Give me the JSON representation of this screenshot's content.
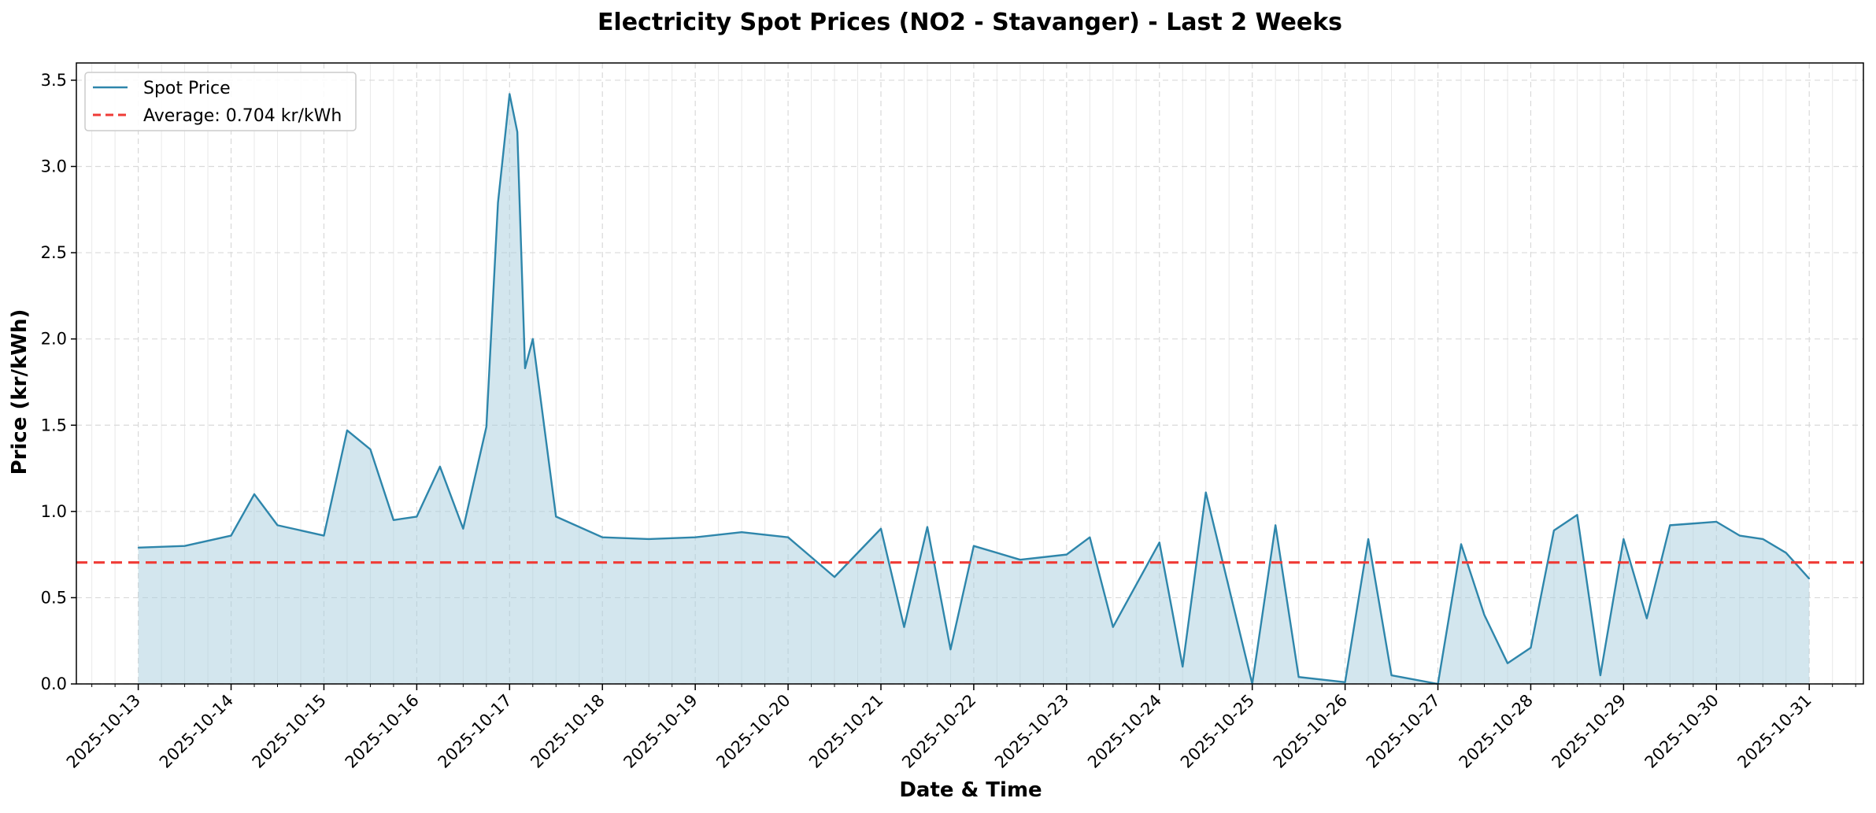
{
  "chart_data": {
    "type": "line",
    "title": "Electricity Spot Prices (NO2 - Stavanger) - Last 2 Weeks",
    "xlabel": "Date & Time",
    "ylabel": "Price (kr/kWh)",
    "ylim": [
      0.0,
      3.6
    ],
    "y_ticks": [
      "0.0",
      "0.5",
      "1.0",
      "1.5",
      "2.0",
      "2.5",
      "3.0",
      "3.5"
    ],
    "x_ticks": [
      "2025-10-13",
      "2025-10-14",
      "2025-10-15",
      "2025-10-16",
      "2025-10-17",
      "2025-10-18",
      "2025-10-19",
      "2025-10-20",
      "2025-10-21",
      "2025-10-22",
      "2025-10-23",
      "2025-10-24",
      "2025-10-25",
      "2025-10-26",
      "2025-10-27",
      "2025-10-28",
      "2025-10-29",
      "2025-10-30",
      "2025-10-31"
    ],
    "xlim": [
      "2025-10-12T08:00",
      "2025-10-31T14:00"
    ],
    "grid": true,
    "legend_position": "top-left",
    "colors": {
      "series": "#2e86ab",
      "fill": "#a8cddd",
      "average": "#ef3b36"
    },
    "series": [
      {
        "name": "Spot Price",
        "style": "solid",
        "x": [
          "2025-10-13T00:00",
          "2025-10-13T12:00",
          "2025-10-14T00:00",
          "2025-10-14T06:00",
          "2025-10-14T12:00",
          "2025-10-15T00:00",
          "2025-10-15T06:00",
          "2025-10-15T12:00",
          "2025-10-15T18:00",
          "2025-10-16T00:00",
          "2025-10-16T06:00",
          "2025-10-16T12:00",
          "2025-10-16T18:00",
          "2025-10-16T21:00",
          "2025-10-17T00:00",
          "2025-10-17T02:00",
          "2025-10-17T04:00",
          "2025-10-17T06:00",
          "2025-10-17T12:00",
          "2025-10-18T00:00",
          "2025-10-18T12:00",
          "2025-10-19T00:00",
          "2025-10-19T12:00",
          "2025-10-20T00:00",
          "2025-10-20T12:00",
          "2025-10-21T00:00",
          "2025-10-21T06:00",
          "2025-10-21T12:00",
          "2025-10-21T18:00",
          "2025-10-22T00:00",
          "2025-10-22T12:00",
          "2025-10-23T00:00",
          "2025-10-23T06:00",
          "2025-10-23T12:00",
          "2025-10-24T00:00",
          "2025-10-24T06:00",
          "2025-10-24T12:00",
          "2025-10-25T00:00",
          "2025-10-25T06:00",
          "2025-10-25T12:00",
          "2025-10-26T00:00",
          "2025-10-26T06:00",
          "2025-10-26T12:00",
          "2025-10-27T00:00",
          "2025-10-27T06:00",
          "2025-10-27T12:00",
          "2025-10-27T18:00",
          "2025-10-28T00:00",
          "2025-10-28T06:00",
          "2025-10-28T12:00",
          "2025-10-28T18:00",
          "2025-10-29T00:00",
          "2025-10-29T06:00",
          "2025-10-29T12:00",
          "2025-10-30T00:00",
          "2025-10-30T06:00",
          "2025-10-30T12:00",
          "2025-10-30T18:00",
          "2025-10-31T00:00"
        ],
        "y": [
          0.79,
          0.8,
          0.86,
          1.1,
          0.92,
          0.86,
          1.47,
          1.36,
          0.95,
          0.97,
          1.26,
          0.9,
          1.49,
          2.79,
          3.42,
          3.2,
          1.83,
          2.0,
          0.97,
          0.85,
          0.84,
          0.85,
          0.88,
          0.85,
          0.62,
          0.9,
          0.33,
          0.91,
          0.2,
          0.8,
          0.72,
          0.75,
          0.85,
          0.33,
          0.82,
          0.1,
          1.11,
          0.0,
          0.92,
          0.04,
          0.01,
          0.84,
          0.05,
          0.0,
          0.81,
          0.4,
          0.12,
          0.21,
          0.89,
          0.98,
          0.05,
          0.84,
          0.38,
          0.92,
          0.94,
          0.86,
          0.84,
          0.76,
          0.61
        ]
      },
      {
        "name": "Average: 0.704 kr/kWh",
        "style": "dashed",
        "value": 0.704
      }
    ]
  }
}
